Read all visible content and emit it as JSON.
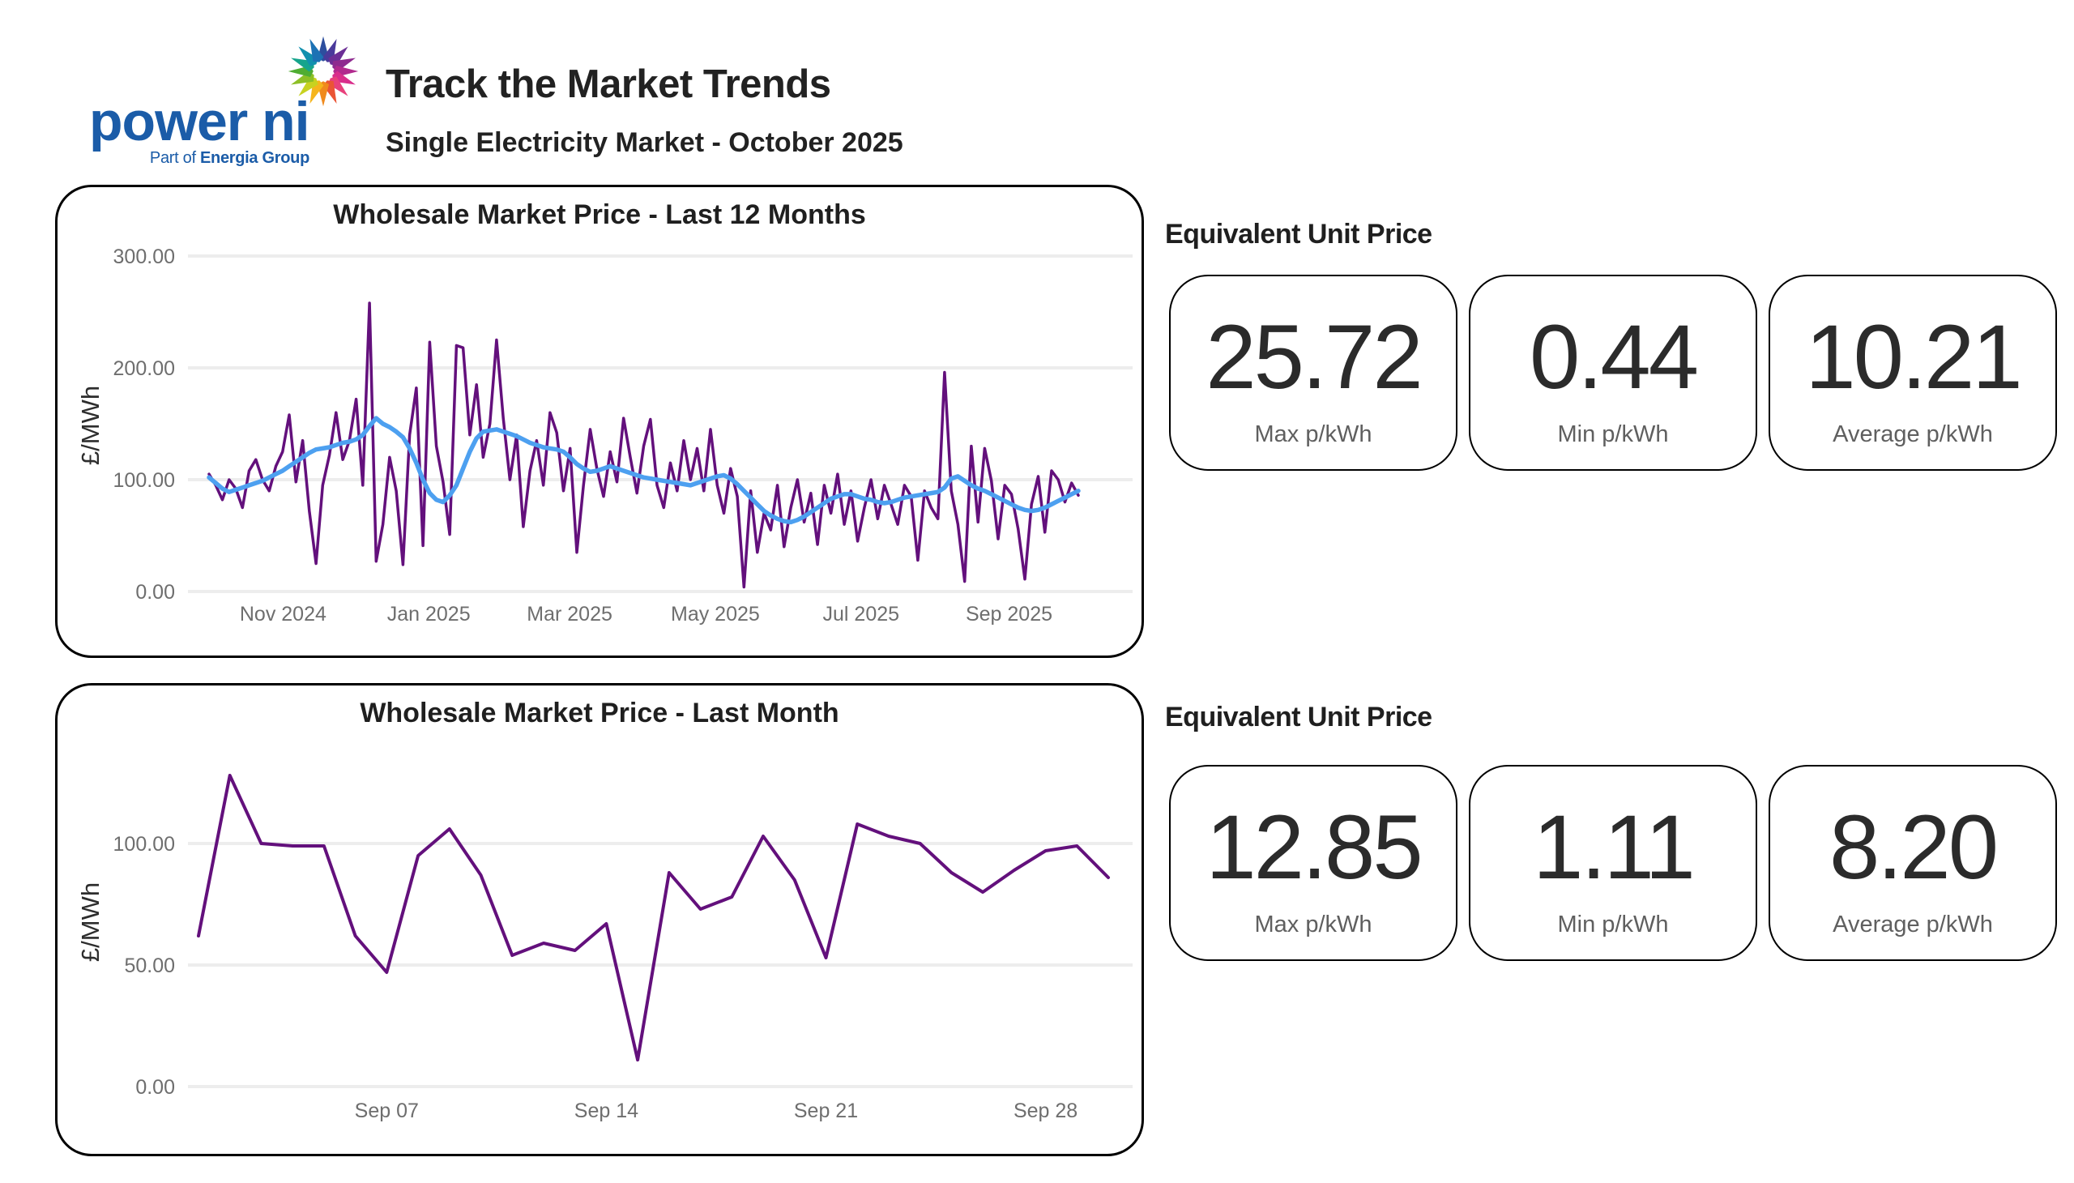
{
  "header": {
    "logo": {
      "brand": "power ni",
      "tagline_prefix": "Part of ",
      "tagline_bold": "Energia Group",
      "brand_color": "#1B5CA8",
      "starburst_colors": [
        "#2D4E9E",
        "#4A3A9B",
        "#6C2F96",
        "#8E2A8F",
        "#B12A8E",
        "#D92E8C",
        "#E8417B",
        "#EA5535",
        "#F08A1D",
        "#F5B51C",
        "#C8D220",
        "#8DBF26",
        "#4FAD32",
        "#16A48C",
        "#1190AE",
        "#1C72B4"
      ]
    },
    "title": "Track the Market Trends",
    "subtitle": "Single Electricity Market - October 2025"
  },
  "unit_sections": [
    {
      "heading": "Equivalent Unit Price",
      "cards": [
        {
          "value": "25.72",
          "label": "Max p/kWh"
        },
        {
          "value": "0.44",
          "label": "Min p/kWh"
        },
        {
          "value": "10.21",
          "label": "Average p/kWh"
        }
      ]
    },
    {
      "heading": "Equivalent Unit Price",
      "cards": [
        {
          "value": "12.85",
          "label": "Max p/kWh"
        },
        {
          "value": "1.11",
          "label": "Min p/kWh"
        },
        {
          "value": "8.20",
          "label": "Average p/kWh"
        }
      ]
    }
  ],
  "chart_data": [
    {
      "type": "line",
      "title": "Wholesale Market Price - Last 12 Months",
      "ylabel": "£/MWh",
      "ylim": [
        0,
        300
      ],
      "grid": true,
      "legend": "none",
      "yticks": [
        {
          "value": 0,
          "label": "0.00"
        },
        {
          "value": 100,
          "label": "100.00"
        },
        {
          "value": 200,
          "label": "200.00"
        },
        {
          "value": 300,
          "label": "300.00"
        }
      ],
      "x_span_days": 365,
      "xticks": [
        {
          "day": 31,
          "label": "Nov 2024"
        },
        {
          "day": 92,
          "label": "Jan 2025"
        },
        {
          "day": 151,
          "label": "Mar 2025"
        },
        {
          "day": 212,
          "label": "May 2025"
        },
        {
          "day": 273,
          "label": "Jul 2025"
        },
        {
          "day": 335,
          "label": "Sep 2025"
        }
      ],
      "series": [
        {
          "color": "#63107C",
          "width": 3.5,
          "values": [
            105,
            95,
            82,
            100,
            92,
            75,
            108,
            118,
            100,
            90,
            112,
            125,
            158,
            98,
            135,
            72,
            25,
            95,
            122,
            160,
            118,
            135,
            172,
            95,
            258,
            27,
            60,
            120,
            90,
            24,
            140,
            182,
            41,
            223,
            130,
            98,
            51,
            220,
            218,
            140,
            185,
            120,
            150,
            225,
            155,
            100,
            140,
            58,
            108,
            135,
            95,
            160,
            142,
            90,
            128,
            35,
            95,
            145,
            110,
            85,
            125,
            98,
            155,
            120,
            88,
            130,
            154,
            95,
            75,
            115,
            90,
            135,
            100,
            128,
            90,
            145,
            95,
            70,
            110,
            85,
            4,
            90,
            35,
            70,
            55,
            95,
            40,
            75,
            100,
            62,
            88,
            42,
            95,
            70,
            105,
            60,
            90,
            45,
            75,
            100,
            65,
            95,
            78,
            60,
            95,
            85,
            28,
            90,
            75,
            65,
            196,
            90,
            60,
            9,
            130,
            62,
            128,
            99,
            47,
            95,
            87,
            56,
            11,
            78,
            103,
            53,
            108,
            100,
            80,
            97,
            86
          ]
        },
        {
          "color": "#4DA0F0",
          "width": 5.5,
          "values": [
            102,
            97,
            92,
            89,
            91,
            93,
            95,
            97,
            99,
            102,
            105,
            108,
            112,
            116,
            120,
            124,
            127,
            128,
            129,
            131,
            133,
            134,
            136,
            140,
            148,
            155,
            150,
            147,
            143,
            138,
            128,
            115,
            100,
            88,
            82,
            80,
            86,
            95,
            110,
            125,
            137,
            143,
            144,
            145,
            143,
            141,
            139,
            136,
            133,
            131,
            129,
            128,
            127,
            125,
            120,
            114,
            110,
            107,
            108,
            110,
            112,
            110,
            108,
            106,
            104,
            102,
            101,
            100,
            99,
            98,
            97,
            96,
            95,
            97,
            99,
            101,
            103,
            104,
            101,
            96,
            90,
            84,
            78,
            72,
            68,
            65,
            63,
            62,
            64,
            67,
            71,
            75,
            79,
            83,
            85,
            87,
            87,
            85,
            83,
            82,
            80,
            79,
            80,
            82,
            84,
            85,
            86,
            87,
            88,
            89,
            93,
            101,
            103,
            99,
            95,
            92,
            90,
            87,
            84,
            81,
            78,
            75,
            73,
            72,
            73,
            75,
            78,
            81,
            84,
            87,
            90
          ]
        }
      ]
    },
    {
      "type": "line",
      "title": "Wholesale Market Price - Last Month",
      "ylabel": "£/MWh",
      "ylim": [
        0,
        140
      ],
      "grid": true,
      "legend": "none",
      "yticks": [
        {
          "value": 0,
          "label": "0.00"
        },
        {
          "value": 50,
          "label": "50.00"
        },
        {
          "value": 100,
          "label": "100.00"
        }
      ],
      "x_span_days": 30,
      "xticks": [
        {
          "day": 6,
          "label": "Sep 07"
        },
        {
          "day": 13,
          "label": "Sep 14"
        },
        {
          "day": 20,
          "label": "Sep 21"
        },
        {
          "day": 27,
          "label": "Sep 28"
        }
      ],
      "series": [
        {
          "color": "#63107C",
          "width": 4,
          "values": [
            62,
            128,
            100,
            99,
            99,
            62,
            47,
            95,
            106,
            87,
            54,
            59,
            56,
            67,
            11,
            88,
            73,
            78,
            103,
            85,
            53,
            108,
            103,
            100,
            88,
            80,
            89,
            97,
            99,
            86
          ]
        }
      ]
    }
  ]
}
